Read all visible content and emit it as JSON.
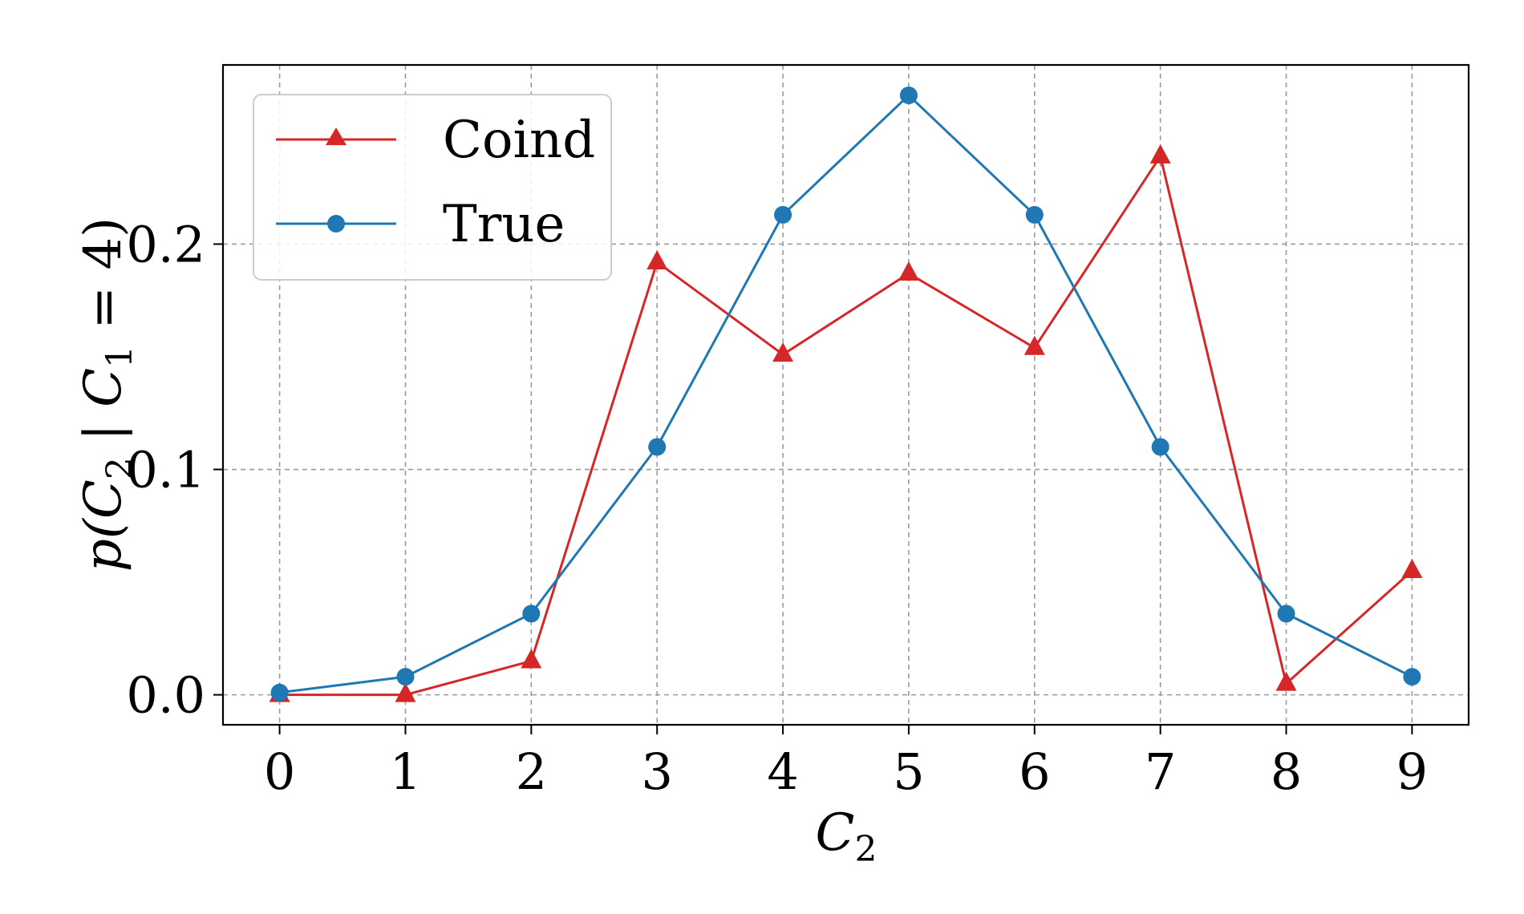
{
  "chart_data": {
    "type": "line",
    "x": [
      0,
      1,
      2,
      3,
      4,
      5,
      6,
      7,
      8,
      9
    ],
    "series": [
      {
        "name": "Coind",
        "color": "#d62728",
        "marker": "triangle",
        "values": [
          0.0,
          0.0,
          0.015,
          0.192,
          0.151,
          0.187,
          0.154,
          0.239,
          0.005,
          0.055
        ]
      },
      {
        "name": "True",
        "color": "#1f77b4",
        "marker": "circle",
        "values": [
          0.001,
          0.008,
          0.036,
          0.11,
          0.213,
          0.266,
          0.213,
          0.11,
          0.036,
          0.008
        ]
      }
    ],
    "xticks": [
      "0",
      "1",
      "2",
      "3",
      "4",
      "5",
      "6",
      "7",
      "8",
      "9"
    ],
    "yticks": [
      "0.0",
      "0.1",
      "0.2"
    ],
    "ytick_values": [
      0.0,
      0.1,
      0.2
    ],
    "xlabel": "C2",
    "ylabel": "p(C2 | C1 = 4)",
    "xlim": [
      -0.45,
      9.45
    ],
    "ylim": [
      -0.0133,
      0.2795
    ],
    "grid": true,
    "legend_position": "upper-left"
  }
}
